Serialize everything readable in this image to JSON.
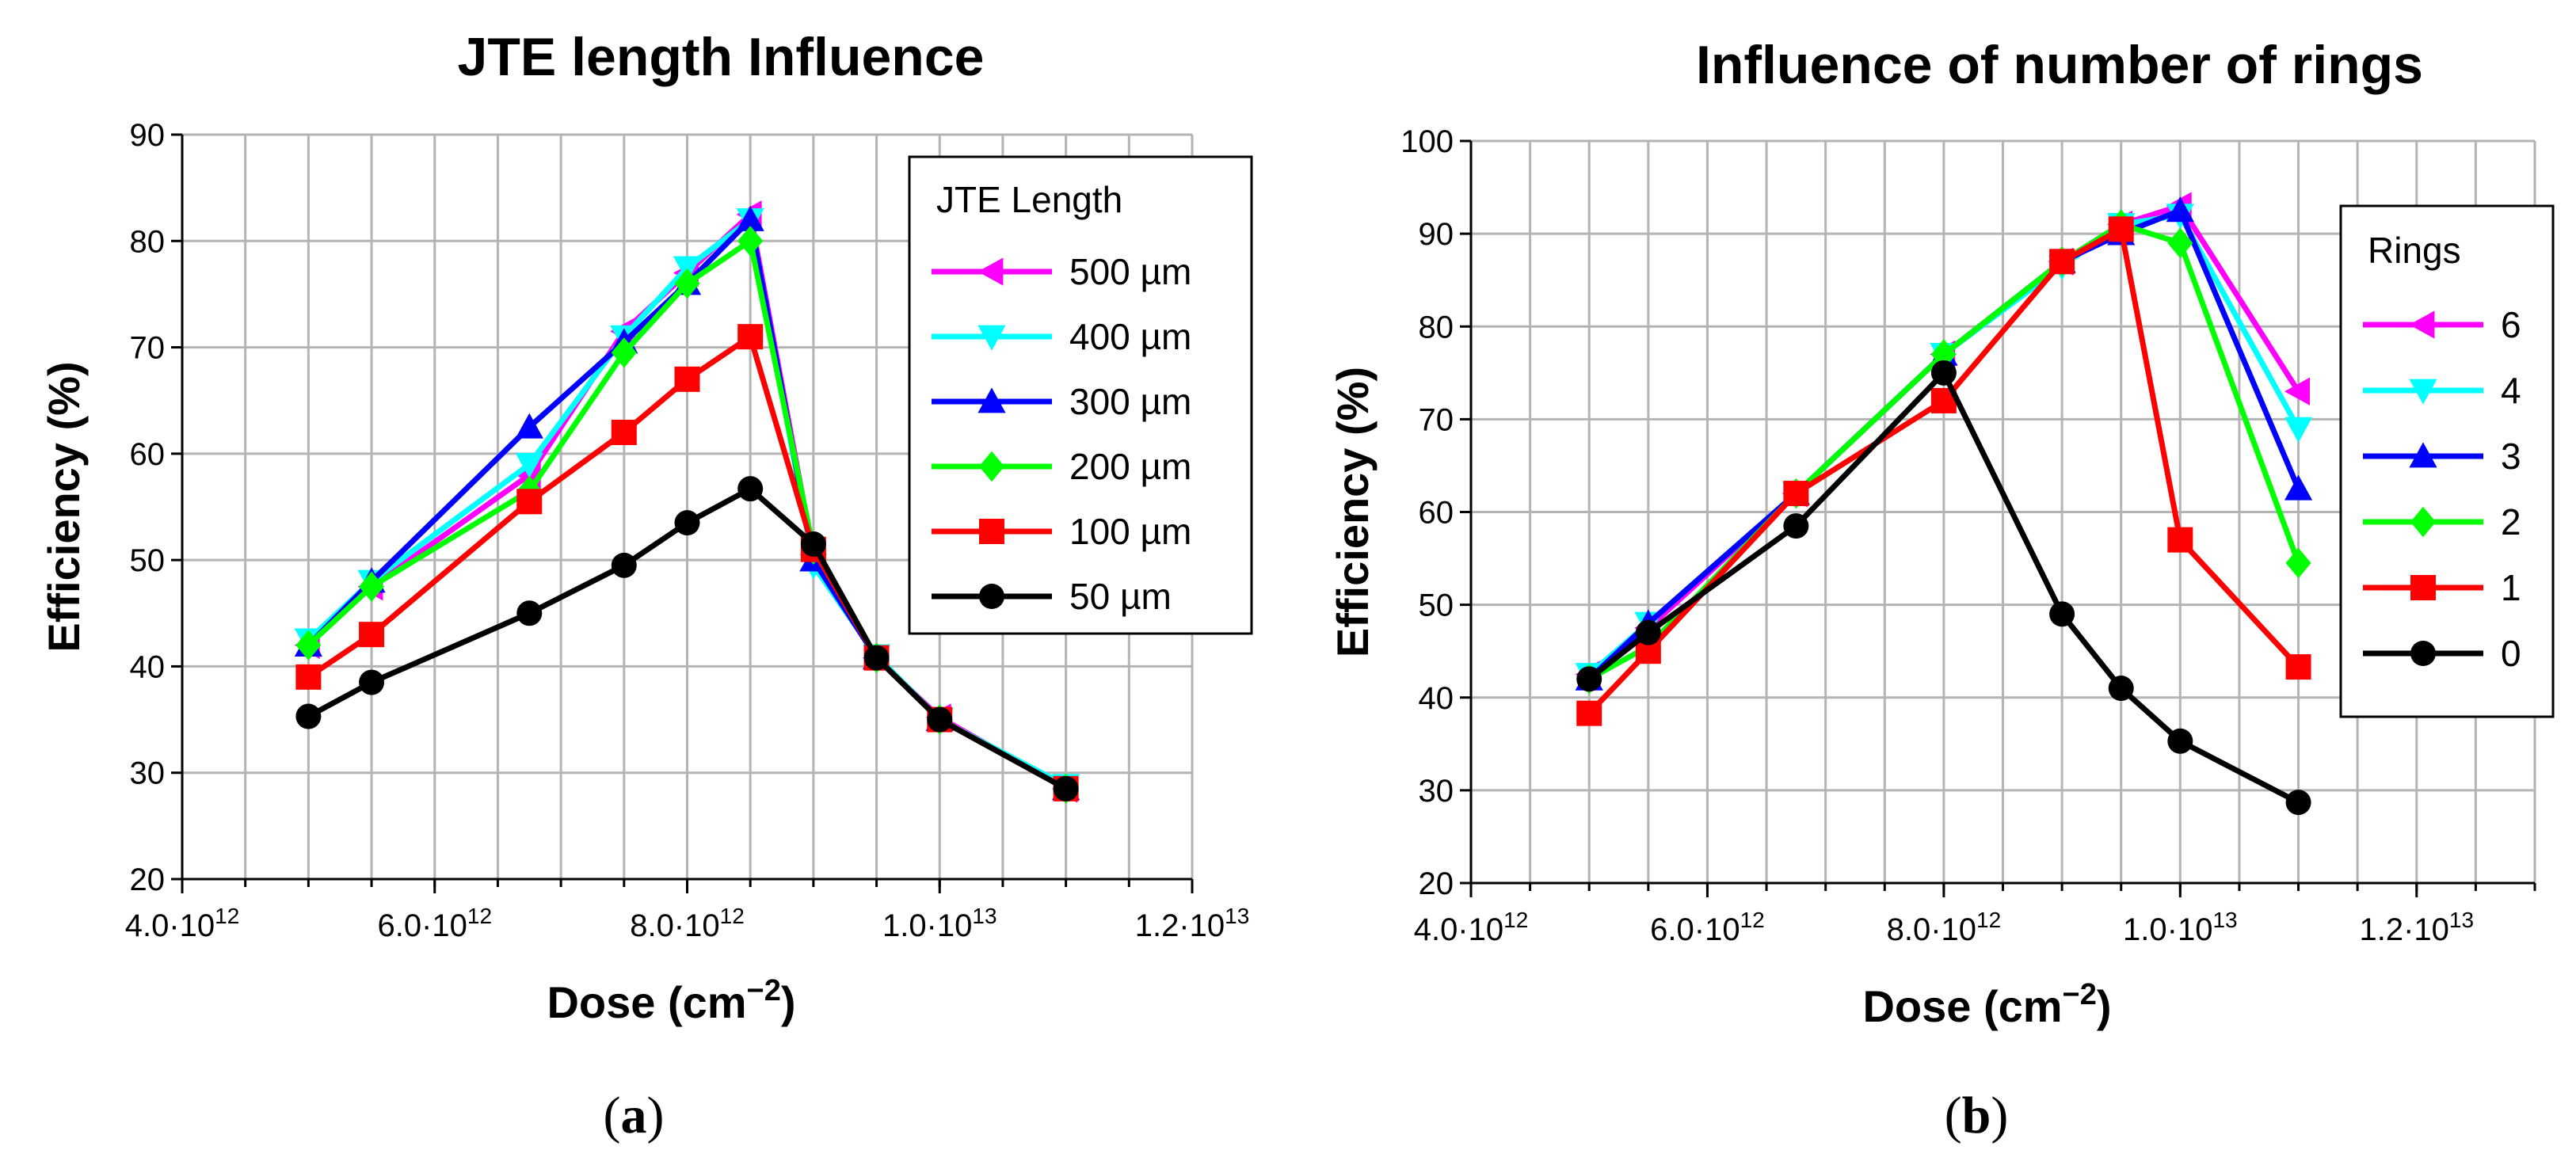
{
  "chart_data": [
    {
      "type": "line",
      "title": "JTE length Influence",
      "xlabel": "Dose",
      "xlabel_unit": "(cm−2)",
      "ylabel": "Efficiency (%)",
      "xlim": [
        4000000000000.0,
        12000000000000.0
      ],
      "ylim": [
        20,
        90
      ],
      "y_ticks": [
        20,
        30,
        40,
        50,
        60,
        70,
        80,
        90
      ],
      "x_ticks": [
        {
          "value": 4000000000000.0,
          "mant": "4.0·10",
          "exp": "12"
        },
        {
          "value": 6000000000000.0,
          "mant": "6.0·10",
          "exp": "12"
        },
        {
          "value": 8000000000000.0,
          "mant": "8.0·10",
          "exp": "12"
        },
        {
          "value": 10000000000000.0,
          "mant": "1.0·10",
          "exp": "13"
        },
        {
          "value": 12000000000000.0,
          "mant": "1.2·10",
          "exp": "13"
        }
      ],
      "grid": true,
      "legend_title": "JTE Length",
      "legend_position": "top-right",
      "caption": "a",
      "series": [
        {
          "name": "500 µm",
          "color": "#ff00ff",
          "marker": "triangle-left",
          "x": [
            5000000000000.0,
            5500000000000.0,
            6750000000000.0,
            7500000000000.0,
            8000000000000.0,
            8500000000000.0,
            9000000000000.0,
            9500000000000.0,
            10000000000000.0,
            11000000000000.0
          ],
          "y": [
            42,
            47.5,
            58,
            71.5,
            77,
            82.5,
            50.5,
            40.8,
            35.2,
            28.5
          ]
        },
        {
          "name": "400 µm",
          "color": "#00ffff",
          "marker": "triangle-down",
          "x": [
            5000000000000.0,
            5500000000000.0,
            6750000000000.0,
            7500000000000.0,
            8000000000000.0,
            8500000000000.0,
            9000000000000.0,
            9500000000000.0,
            10000000000000.0,
            11000000000000.0
          ],
          "y": [
            42.5,
            48,
            59,
            71,
            77.5,
            82,
            49.5,
            41,
            35,
            28.8
          ]
        },
        {
          "name": "300 µm",
          "color": "#0000ff",
          "marker": "triangle-up",
          "x": [
            5000000000000.0,
            5500000000000.0,
            6750000000000.0,
            7500000000000.0,
            8000000000000.0,
            8500000000000.0,
            9000000000000.0,
            9500000000000.0,
            10000000000000.0,
            11000000000000.0
          ],
          "y": [
            42,
            48,
            62.5,
            70.5,
            76,
            82,
            50,
            40.8,
            35,
            28.5
          ]
        },
        {
          "name": "200 µm",
          "color": "#00ff00",
          "marker": "diamond",
          "x": [
            5000000000000.0,
            5500000000000.0,
            6750000000000.0,
            7500000000000.0,
            8000000000000.0,
            8500000000000.0,
            9000000000000.0,
            9500000000000.0,
            10000000000000.0,
            11000000000000.0
          ],
          "y": [
            42,
            47.5,
            56.5,
            69.5,
            76,
            80,
            51,
            40.8,
            35,
            28.5
          ]
        },
        {
          "name": "100 µm",
          "color": "#ff0000",
          "marker": "square",
          "x": [
            5000000000000.0,
            5500000000000.0,
            6750000000000.0,
            7500000000000.0,
            8000000000000.0,
            8500000000000.0,
            9000000000000.0,
            9500000000000.0,
            10000000000000.0,
            11000000000000.0
          ],
          "y": [
            39,
            43,
            55.5,
            62,
            67,
            71,
            51,
            40.8,
            35,
            28.5
          ]
        },
        {
          "name": "50 µm",
          "color": "#000000",
          "marker": "circle",
          "x": [
            5000000000000.0,
            5500000000000.0,
            6750000000000.0,
            7500000000000.0,
            8000000000000.0,
            8500000000000.0,
            9000000000000.0,
            9500000000000.0,
            10000000000000.0,
            11000000000000.0
          ],
          "y": [
            35.3,
            38.5,
            45,
            49.5,
            53.5,
            56.7,
            51.5,
            40.8,
            35,
            28.5
          ]
        }
      ]
    },
    {
      "type": "line",
      "title": "Influence of number of rings",
      "xlabel": "Dose",
      "xlabel_unit": "(cm−2)",
      "ylabel": "Efficiency (%)",
      "xlim": [
        4000000000000.0,
        13000000000000.0
      ],
      "ylim": [
        20,
        100
      ],
      "y_ticks": [
        20,
        30,
        40,
        50,
        60,
        70,
        80,
        90,
        100
      ],
      "x_ticks": [
        {
          "value": 4000000000000.0,
          "mant": "4.0·10",
          "exp": "12"
        },
        {
          "value": 6000000000000.0,
          "mant": "6.0·10",
          "exp": "12"
        },
        {
          "value": 8000000000000.0,
          "mant": "8.0·10",
          "exp": "12"
        },
        {
          "value": 10000000000000.0,
          "mant": "1.0·10",
          "exp": "13"
        },
        {
          "value": 12000000000000.0,
          "mant": "1.2·10",
          "exp": "13"
        }
      ],
      "grid": true,
      "legend_title": "Rings",
      "legend_position": "right",
      "caption": "b",
      "series": [
        {
          "name": "6",
          "color": "#ff00ff",
          "marker": "triangle-left",
          "x": [
            5000000000000.0,
            5500000000000.0,
            6750000000000.0,
            8000000000000.0,
            9000000000000.0,
            9500000000000.0,
            10000000000000.0,
            11000000000000.0
          ],
          "y": [
            42.5,
            47.5,
            62,
            77,
            87,
            91,
            93,
            73
          ]
        },
        {
          "name": "4",
          "color": "#00ffff",
          "marker": "triangle-down",
          "x": [
            5000000000000.0,
            5500000000000.0,
            6750000000000.0,
            8000000000000.0,
            9000000000000.0,
            9500000000000.0,
            10000000000000.0,
            11000000000000.0
          ],
          "y": [
            42.5,
            48,
            62,
            77,
            86.5,
            91,
            92,
            69
          ]
        },
        {
          "name": "3",
          "color": "#0000ff",
          "marker": "triangle-up",
          "x": [
            5000000000000.0,
            5500000000000.0,
            6750000000000.0,
            8000000000000.0,
            9000000000000.0,
            9500000000000.0,
            10000000000000.0,
            11000000000000.0
          ],
          "y": [
            42,
            48,
            62,
            77,
            87,
            90,
            92.5,
            62.5
          ]
        },
        {
          "name": "2",
          "color": "#00ff00",
          "marker": "diamond",
          "x": [
            5000000000000.0,
            5500000000000.0,
            6750000000000.0,
            8000000000000.0,
            9000000000000.0,
            9500000000000.0,
            10000000000000.0,
            11000000000000.0
          ],
          "y": [
            42,
            45.5,
            62,
            77,
            87,
            91,
            89,
            54.5
          ]
        },
        {
          "name": "1",
          "color": "#ff0000",
          "marker": "square",
          "x": [
            5000000000000.0,
            5500000000000.0,
            6750000000000.0,
            8000000000000.0,
            9000000000000.0,
            9500000000000.0,
            10000000000000.0,
            11000000000000.0
          ],
          "y": [
            38.3,
            45,
            62,
            72,
            87,
            90.5,
            57,
            43.3
          ]
        },
        {
          "name": "0",
          "color": "#000000",
          "marker": "circle",
          "x": [
            5000000000000.0,
            5500000000000.0,
            6750000000000.0,
            8000000000000.0,
            9000000000000.0,
            9500000000000.0,
            10000000000000.0,
            11000000000000.0
          ],
          "y": [
            42,
            47,
            58.5,
            75,
            49,
            41,
            35.3,
            28.7
          ]
        }
      ]
    }
  ]
}
